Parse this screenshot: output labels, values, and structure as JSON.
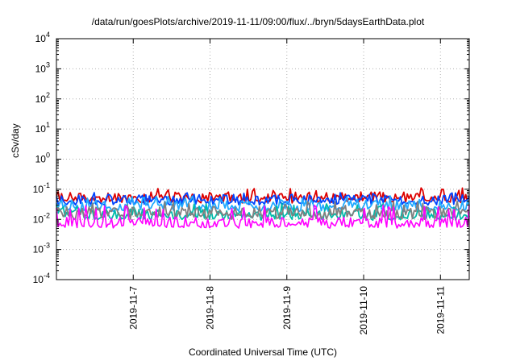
{
  "chart_data": {
    "type": "line",
    "title": "/data/run/goesPlots/archive/2019-11-11/09:00/flux/../bryn/5daysEarthData.plot",
    "xlabel": "Coordinated Universal Time (UTC)",
    "ylabel": "cSv/day",
    "yscale": "log",
    "ylim_exp": [
      -4,
      4
    ],
    "y_tick_labels": [
      {
        "base": "10",
        "exp": "-4"
      },
      {
        "base": "10",
        "exp": "-3"
      },
      {
        "base": "10",
        "exp": "-2"
      },
      {
        "base": "10",
        "exp": "-1"
      },
      {
        "base": "10",
        "exp": "0"
      },
      {
        "base": "10",
        "exp": "1"
      },
      {
        "base": "10",
        "exp": "2"
      },
      {
        "base": "10",
        "exp": "3"
      },
      {
        "base": "10",
        "exp": "4"
      }
    ],
    "x_range": [
      "2019-11-06T00:00",
      "2019-11-11T09:00"
    ],
    "x_ticks": [
      {
        "date": "2019-11-07T00:00",
        "label": "2019-11-7"
      },
      {
        "date": "2019-11-08T00:00",
        "label": "2019-11-8"
      },
      {
        "date": "2019-11-09T00:00",
        "label": "2019-11-9"
      },
      {
        "date": "2019-11-10T00:00",
        "label": "2019-11-10"
      },
      {
        "date": "2019-11-11T00:00",
        "label": "2019-11-11"
      }
    ],
    "grid": true,
    "series": [
      {
        "color": "#dd0000",
        "typical": 0.055,
        "min": 0.035,
        "max": 0.11
      },
      {
        "color": "#0044ff",
        "typical": 0.045,
        "min": 0.03,
        "max": 0.08
      },
      {
        "color": "#22aaff",
        "typical": 0.03,
        "min": 0.018,
        "max": 0.06
      },
      {
        "color": "#00bbaa",
        "typical": 0.015,
        "min": 0.009,
        "max": 0.035
      },
      {
        "color": "#808080",
        "typical": 0.018,
        "min": 0.01,
        "max": 0.04
      },
      {
        "color": "#ff00ff",
        "typical": 0.008,
        "min": 0.005,
        "max": 0.03
      }
    ]
  }
}
